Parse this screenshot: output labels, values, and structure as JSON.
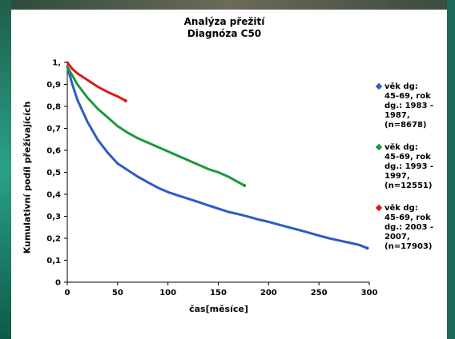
{
  "chart_data": {
    "type": "line",
    "title": "Analýza přežití",
    "subtitle": "Diagnóza C50",
    "xlabel": "čas[měsíce]",
    "ylabel": "Kumulativní podíl přežívajících",
    "xlim": [
      0,
      300
    ],
    "ylim": [
      0,
      1
    ],
    "x_ticks": [
      "0",
      "50",
      "100",
      "150",
      "200",
      "250",
      "300"
    ],
    "y_ticks": [
      "0",
      "0,1",
      "0,2",
      "0,3",
      "0,4",
      "0,5",
      "0,6",
      "0,7",
      "0,8",
      "0,9",
      "1,"
    ],
    "grid": false,
    "legend_position": "right",
    "series": [
      {
        "name": "věk dg: 45-69, rok dg.: 1983 - 1987, (n=8678)",
        "color": "#2a5cc8",
        "x": [
          0,
          5,
          10,
          20,
          30,
          40,
          50,
          60,
          70,
          80,
          90,
          100,
          110,
          120,
          130,
          140,
          150,
          160,
          170,
          180,
          190,
          200,
          210,
          220,
          230,
          240,
          250,
          260,
          270,
          280,
          290,
          298
        ],
        "y": [
          0.98,
          0.9,
          0.83,
          0.73,
          0.65,
          0.59,
          0.54,
          0.51,
          0.48,
          0.455,
          0.43,
          0.41,
          0.395,
          0.38,
          0.365,
          0.35,
          0.335,
          0.32,
          0.31,
          0.298,
          0.285,
          0.275,
          0.262,
          0.25,
          0.238,
          0.225,
          0.212,
          0.2,
          0.19,
          0.18,
          0.17,
          0.155
        ]
      },
      {
        "name": "věk dg: 45-69, rok dg.: 1993 - 1997, (n=12551)",
        "color": "#1a9a3a",
        "x": [
          0,
          5,
          10,
          20,
          30,
          40,
          50,
          60,
          70,
          80,
          90,
          100,
          110,
          120,
          130,
          140,
          150,
          160,
          170,
          176
        ],
        "y": [
          0.98,
          0.94,
          0.9,
          0.84,
          0.79,
          0.75,
          0.71,
          0.68,
          0.655,
          0.635,
          0.615,
          0.595,
          0.575,
          0.555,
          0.535,
          0.515,
          0.5,
          0.48,
          0.455,
          0.44
        ]
      },
      {
        "name": "věk dg: 45-69, rok dg.: 2003 - 2007, (n=17903)",
        "color": "#e01818",
        "x": [
          0,
          5,
          10,
          20,
          30,
          40,
          50,
          58
        ],
        "y": [
          1.0,
          0.97,
          0.95,
          0.92,
          0.89,
          0.865,
          0.845,
          0.825
        ]
      }
    ]
  }
}
